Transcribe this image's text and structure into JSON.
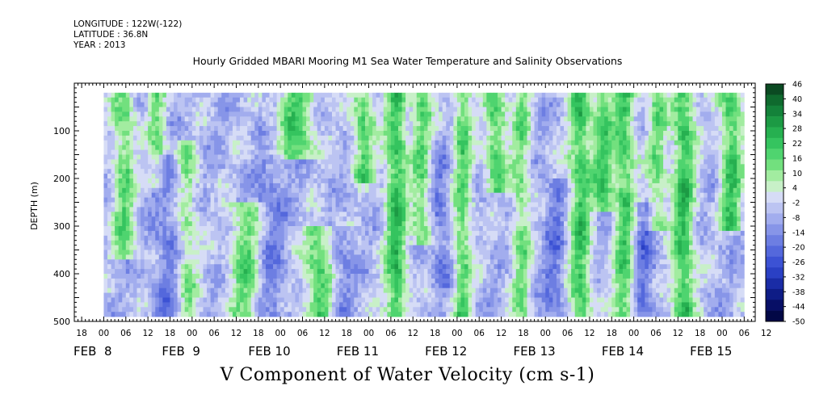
{
  "header": {
    "longitude": "LONGITUDE : 122W(-122)",
    "latitude": "LATITUDE : 36.8N",
    "year": "YEAR : 2013"
  },
  "chart_data": {
    "type": "heatmap",
    "title": "Hourly Gridded MBARI Mooring M1 Sea Water Temperature and Salinity Observations",
    "footer": "V Component of Water Velocity (cm s-1)",
    "ylabel": "DEPTH (m)",
    "ylim": [
      500,
      20
    ],
    "yticks": [
      "100",
      "200",
      "300",
      "400",
      "500"
    ],
    "hour_ticks": [
      "18",
      "00",
      "06",
      "12",
      "18",
      "00",
      "06",
      "12",
      "18",
      "00",
      "06",
      "12",
      "18",
      "00",
      "06",
      "12",
      "18",
      "00",
      "06",
      "12",
      "18",
      "00",
      "06",
      "12",
      "18",
      "00",
      "06",
      "12",
      "18",
      "00",
      "06",
      "12"
    ],
    "day_labels": [
      "FEB  8",
      "FEB  9",
      "FEB 10",
      "FEB 11",
      "FEB 12",
      "FEB 13",
      "FEB 14",
      "FEB 15"
    ],
    "colorbar": {
      "labels": [
        "46",
        "40",
        "34",
        "28",
        "22",
        "16",
        "10",
        "4",
        "-2",
        "-8",
        "-14",
        "-20",
        "-26",
        "-32",
        "-38",
        "-44",
        "-50"
      ],
      "colors_top_to_bottom": [
        "#0b4a22",
        "#0f6a2e",
        "#14823a",
        "#1c9a44",
        "#26b050",
        "#35c45f",
        "#4fd46f",
        "#72e07e",
        "#a2eca0",
        "#c8f0c8",
        "#d6dcf6",
        "#bcc4f2",
        "#a2adee",
        "#8795e8",
        "#6d7ee2",
        "#5468dc",
        "#3c52d4",
        "#2a40c4",
        "#1a2ca6",
        "#0e1c86",
        "#070f66",
        "#020846"
      ]
    },
    "value_range": [
      -50,
      46
    ],
    "depth_range_m": [
      20,
      490
    ],
    "time_range_hours": [
      0,
      174
    ],
    "green_bands": [
      {
        "t": 5,
        "strength": 0.7,
        "width": 3,
        "top": 20,
        "bottom": 360
      },
      {
        "t": 14,
        "strength": 0.6,
        "width": 2.5,
        "top": 20,
        "bottom": 210
      },
      {
        "t": 22,
        "strength": 0.55,
        "width": 3,
        "top": 120,
        "bottom": 490
      },
      {
        "t": 38,
        "strength": 0.7,
        "width": 4,
        "top": 250,
        "bottom": 490
      },
      {
        "t": 52,
        "strength": 0.8,
        "width": 5,
        "top": 20,
        "bottom": 150
      },
      {
        "t": 58,
        "strength": 0.8,
        "width": 4,
        "top": 300,
        "bottom": 490
      },
      {
        "t": 70,
        "strength": 0.75,
        "width": 3,
        "top": 20,
        "bottom": 200
      },
      {
        "t": 79,
        "strength": 0.95,
        "width": 3,
        "top": 20,
        "bottom": 490
      },
      {
        "t": 86,
        "strength": 0.7,
        "width": 2.5,
        "top": 20,
        "bottom": 330
      },
      {
        "t": 97,
        "strength": 0.75,
        "width": 2.5,
        "top": 20,
        "bottom": 490
      },
      {
        "t": 106,
        "strength": 0.8,
        "width": 3,
        "top": 20,
        "bottom": 220
      },
      {
        "t": 113,
        "strength": 0.6,
        "width": 2.5,
        "top": 20,
        "bottom": 490
      },
      {
        "t": 129,
        "strength": 0.9,
        "width": 3,
        "top": 20,
        "bottom": 490
      },
      {
        "t": 135,
        "strength": 0.8,
        "width": 2.5,
        "top": 20,
        "bottom": 260
      },
      {
        "t": 141,
        "strength": 0.85,
        "width": 3,
        "top": 20,
        "bottom": 490
      },
      {
        "t": 150,
        "strength": 0.65,
        "width": 2.5,
        "top": 20,
        "bottom": 300
      },
      {
        "t": 157,
        "strength": 0.95,
        "width": 3,
        "top": 20,
        "bottom": 490
      },
      {
        "t": 170,
        "strength": 0.9,
        "width": 3,
        "top": 20,
        "bottom": 300
      }
    ],
    "blue_bands": [
      {
        "t": 17,
        "strength": 0.6,
        "width": 4,
        "top": 150,
        "bottom": 490
      },
      {
        "t": 45,
        "strength": 0.5,
        "width": 4,
        "top": 150,
        "bottom": 490
      },
      {
        "t": 64,
        "strength": 0.55,
        "width": 3,
        "top": 300,
        "bottom": 490
      },
      {
        "t": 91,
        "strength": 0.55,
        "width": 3,
        "top": 150,
        "bottom": 420
      },
      {
        "t": 122,
        "strength": 0.6,
        "width": 3,
        "top": 200,
        "bottom": 490
      },
      {
        "t": 146,
        "strength": 0.7,
        "width": 3,
        "top": 250,
        "bottom": 490
      }
    ]
  }
}
